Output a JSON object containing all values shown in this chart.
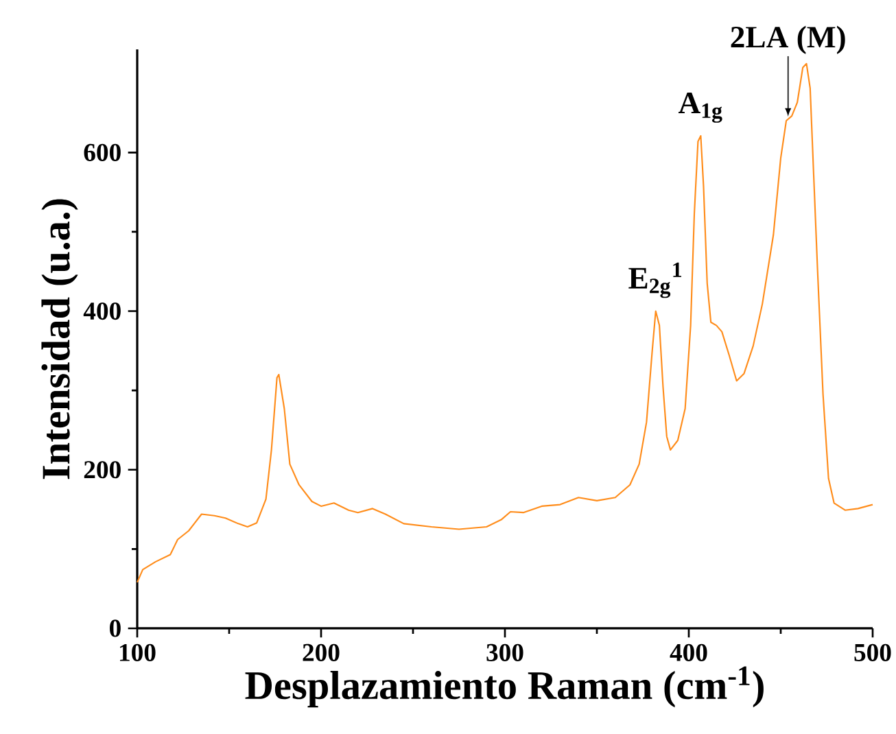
{
  "chart_data": {
    "type": "line",
    "xlabel": "Desplazamiento Raman (cm$^{-1}$)",
    "ylabel": "Intensidad (u.a.)",
    "x": [
      100,
      103,
      110,
      118,
      122,
      128,
      135,
      142,
      148,
      155,
      160,
      165,
      170,
      173,
      176,
      177,
      180,
      183,
      188,
      195,
      200,
      207,
      215,
      220,
      228,
      235,
      245,
      260,
      275,
      290,
      298,
      303,
      310,
      320,
      330,
      340,
      350,
      360,
      368,
      373,
      377,
      380,
      382,
      384,
      386,
      388,
      390,
      394,
      398,
      401,
      403,
      405,
      406.5,
      408,
      410,
      412,
      415,
      418,
      422,
      426,
      430,
      435,
      440,
      446,
      450,
      453,
      456,
      459,
      462,
      464,
      466,
      470,
      473,
      476,
      479,
      485,
      492,
      500
    ],
    "series": [
      {
        "color": "#ff8c1a",
        "values": [
          58,
          74,
          84,
          93,
          112,
          123,
          144,
          142,
          139,
          132,
          128,
          133,
          163,
          225,
          316,
          320,
          277,
          207,
          181,
          160,
          154,
          158,
          149,
          146,
          151,
          144,
          132,
          128,
          125,
          128,
          137,
          147,
          146,
          154,
          156,
          165,
          161,
          165,
          181,
          207,
          260,
          347,
          400,
          382,
          304,
          242,
          225,
          237,
          277,
          382,
          523,
          614,
          621,
          558,
          435,
          386,
          382,
          374,
          344,
          312,
          321,
          356,
          409,
          496,
          593,
          640,
          646,
          663,
          707,
          712,
          681,
          453,
          295,
          189,
          158,
          149,
          151,
          156
        ]
      }
    ],
    "xlim": [
      100,
      500
    ],
    "ylim": [
      0,
      730
    ],
    "xticks": [
      100,
      200,
      300,
      400,
      500
    ],
    "yticks": [
      0,
      200,
      400,
      600
    ],
    "marker": "none",
    "line_style": "solid",
    "annotations": [
      {
        "text": "E$_{2g}$$^{1}$",
        "x": 382,
        "y": 400
      },
      {
        "text": "A$_{1g}$",
        "x": 406.5,
        "y": 621
      },
      {
        "text": "2LA (M)",
        "x": 454,
        "y": 643
      }
    ]
  }
}
